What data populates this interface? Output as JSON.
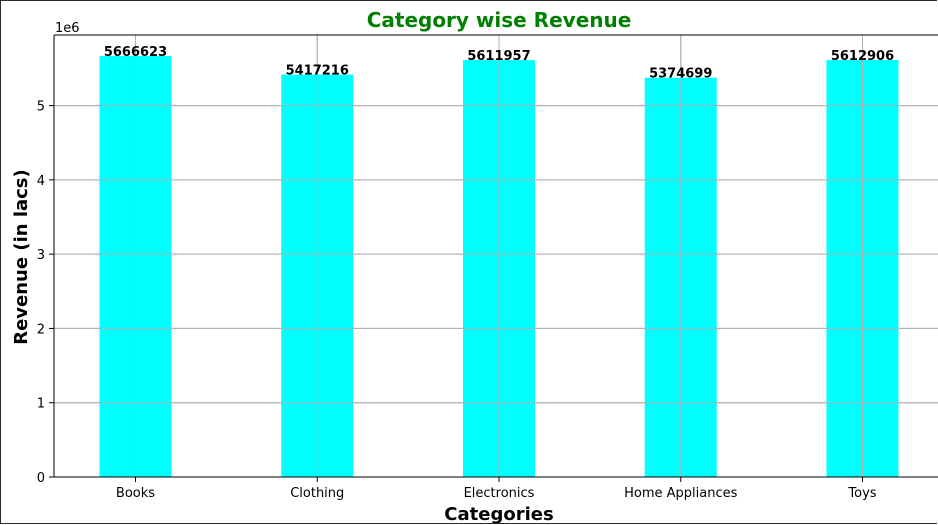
{
  "chart_data": {
    "type": "bar",
    "title": "Category wise Revenue",
    "xlabel": "Categories",
    "ylabel": "Revenue (in lacs)",
    "y_scale_note": "1e6",
    "categories": [
      "Books",
      "Clothing",
      "Electronics",
      "Home Appliances",
      "Toys"
    ],
    "values": [
      5666623,
      5417216,
      5611957,
      5374699,
      5612906
    ],
    "data_labels": [
      "5666623",
      "5417216",
      "5611957",
      "5374699",
      "5612906"
    ],
    "ylim": [
      0,
      5950000
    ],
    "yticks": [
      0,
      1000000,
      2000000,
      3000000,
      4000000,
      5000000
    ],
    "ytick_labels": [
      "0",
      "1",
      "2",
      "3",
      "4",
      "5"
    ],
    "grid": true,
    "colors": {
      "bar": "#00ffff",
      "title": "#008000",
      "grid": "#b0b0b0",
      "axis": "#000000"
    }
  }
}
